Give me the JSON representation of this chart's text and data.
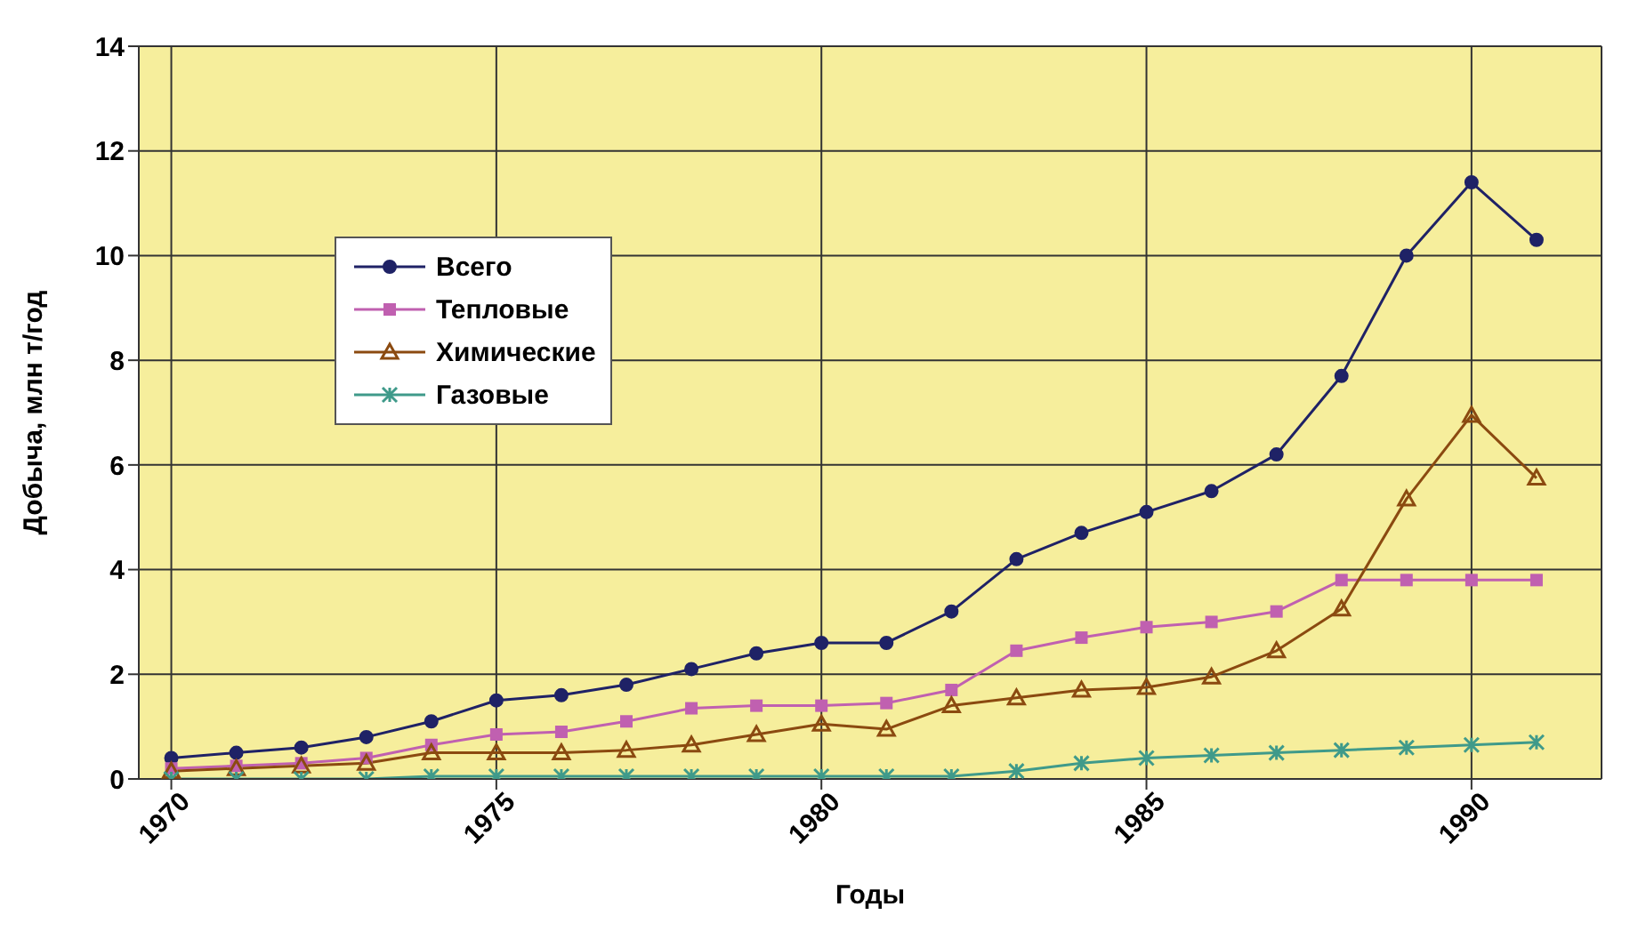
{
  "chart_data": {
    "type": "line",
    "xlabel": "Годы",
    "ylabel": "Добыча, млн т/год",
    "x": [
      1970,
      1971,
      1972,
      1973,
      1974,
      1975,
      1976,
      1977,
      1978,
      1979,
      1980,
      1981,
      1982,
      1983,
      1984,
      1985,
      1986,
      1987,
      1988,
      1989,
      1990,
      1991
    ],
    "xlim": [
      1969.5,
      1992
    ],
    "xticks": [
      1970,
      1975,
      1980,
      1985,
      1990
    ],
    "ylim": [
      0,
      14
    ],
    "yticks": [
      0,
      2,
      4,
      6,
      8,
      10,
      12,
      14
    ],
    "grid": true,
    "legend": "left",
    "line_style": "solid",
    "series": [
      {
        "name": "Всего",
        "color": "#1f2266",
        "marker": "circle",
        "values": [
          0.4,
          0.5,
          0.6,
          0.8,
          1.1,
          1.5,
          1.6,
          1.8,
          2.1,
          2.4,
          2.6,
          2.6,
          3.2,
          4.2,
          4.7,
          5.1,
          5.5,
          6.2,
          7.7,
          10.0,
          11.4,
          10.3
        ]
      },
      {
        "name": "Тепловые",
        "color": "#c060b0",
        "marker": "square",
        "values": [
          0.2,
          0.25,
          0.3,
          0.4,
          0.65,
          0.85,
          0.9,
          1.1,
          1.35,
          1.4,
          1.4,
          1.45,
          1.7,
          2.45,
          2.7,
          2.9,
          3.0,
          3.2,
          3.8,
          3.8,
          3.8,
          3.8
        ]
      },
      {
        "name": "Химические",
        "color": "#8b4a10",
        "marker": "triangle",
        "values": [
          0.15,
          0.2,
          0.25,
          0.3,
          0.5,
          0.5,
          0.5,
          0.55,
          0.65,
          0.85,
          1.05,
          0.95,
          1.4,
          1.55,
          1.7,
          1.75,
          1.95,
          2.45,
          3.25,
          5.35,
          6.95,
          5.75
        ]
      },
      {
        "name": "Газовые",
        "color": "#3f9a8a",
        "marker": "cross",
        "values": [
          0,
          0,
          0,
          0,
          0.05,
          0.05,
          0.05,
          0.05,
          0.05,
          0.05,
          0.05,
          0.05,
          0.05,
          0.15,
          0.3,
          0.4,
          0.45,
          0.5,
          0.55,
          0.6,
          0.65,
          0.7
        ]
      }
    ]
  }
}
